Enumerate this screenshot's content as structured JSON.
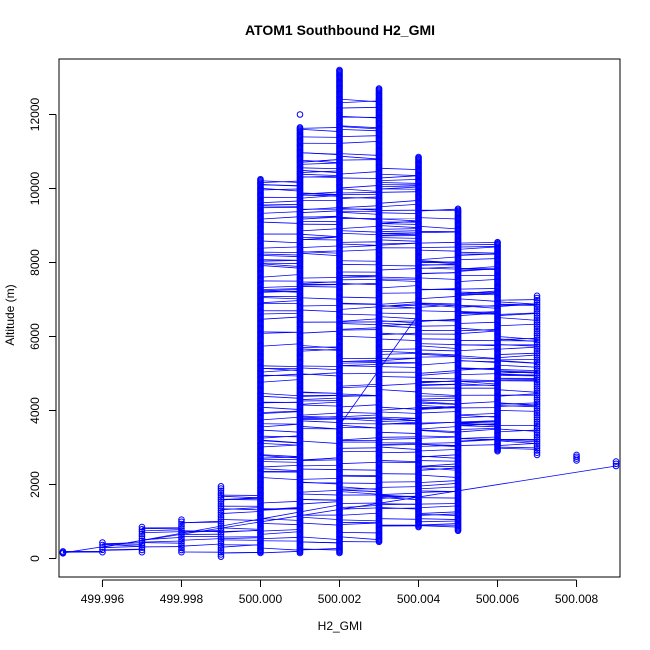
{
  "chart_data": {
    "type": "scatter",
    "title": "ATOM1 Southbound H2_GMI",
    "xlabel": "H2_GMI",
    "ylabel": "Altitude (m)",
    "xlim": [
      499.9949,
      500.0091
    ],
    "ylim": [
      -500,
      13500
    ],
    "x_ticks": [
      499.996,
      499.998,
      500.0,
      500.002,
      500.004,
      500.006,
      500.008
    ],
    "x_tick_labels": [
      "499.996",
      "499.998",
      "500.000",
      "500.002",
      "500.004",
      "500.006",
      "500.008"
    ],
    "y_ticks": [
      0,
      2000,
      4000,
      6000,
      8000,
      10000,
      12000
    ],
    "y_tick_labels": [
      "0",
      "2000",
      "4000",
      "6000",
      "8000",
      "10000",
      "12000"
    ],
    "grid": false,
    "series_color": "#0000ff",
    "marker": "open-circle",
    "connecting_lines": true,
    "points": [
      {
        "x": 499.995,
        "y_min": 140,
        "y_max": 190
      },
      {
        "x": 499.996,
        "y_min": 170,
        "y_max": 430
      },
      {
        "x": 499.997,
        "y_min": 170,
        "y_max": 850
      },
      {
        "x": 499.998,
        "y_min": 170,
        "y_max": 1050
      },
      {
        "x": 499.999,
        "y_min": 50,
        "y_max": 1950
      },
      {
        "x": 500.0,
        "y_min": 150,
        "y_max": 10250
      },
      {
        "x": 500.001,
        "y_min": 150,
        "y_max": 11650,
        "extra_y": [
          12000
        ]
      },
      {
        "x": 500.002,
        "y_min": 150,
        "y_max": 13200
      },
      {
        "x": 500.003,
        "y_min": 450,
        "y_max": 12700
      },
      {
        "x": 500.004,
        "y_min": 850,
        "y_max": 10850
      },
      {
        "x": 500.005,
        "y_min": 750,
        "y_max": 9450
      },
      {
        "x": 500.006,
        "y_min": 2900,
        "y_max": 8550
      },
      {
        "x": 500.007,
        "y_min": 2800,
        "y_max": 7100
      },
      {
        "x": 500.008,
        "y_min": 2650,
        "y_max": 2800
      },
      {
        "x": 500.009,
        "y_min": 2500,
        "y_max": 2620
      }
    ]
  }
}
